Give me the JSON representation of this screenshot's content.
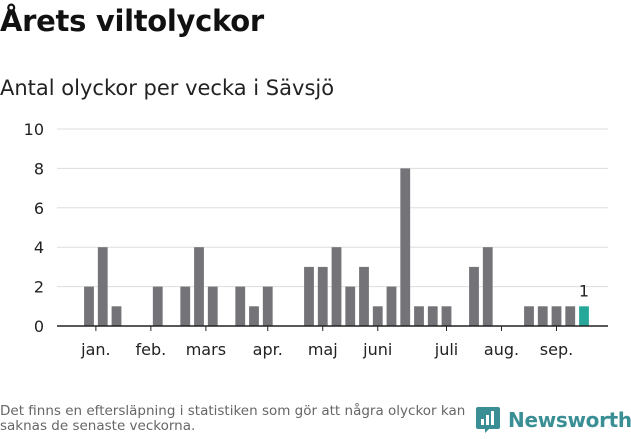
{
  "title": "Årets viltolyckor",
  "subtitle": "Antal olyckor per vecka i Sävsjö",
  "footnote": "Det finns en eftersläpning i statistiken som gör att några olyckor kan saknas de senaste veckorna.",
  "brand": {
    "name": "Newsworthy",
    "icon": "newsworthy-logo-icon"
  },
  "colors": {
    "bar": "#737378",
    "highlight": "#27a79a",
    "grid": "#dddddd",
    "axis": "#222222"
  },
  "chart_data": {
    "type": "bar",
    "title": "Antal olyckor per vecka i Sävsjö",
    "xlabel": "",
    "ylabel": "",
    "ylim": [
      0,
      10
    ],
    "yticks": [
      0,
      2,
      4,
      6,
      8,
      10
    ],
    "grid": true,
    "x": [
      1,
      2,
      3,
      4,
      5,
      6,
      7,
      8,
      9,
      10,
      11,
      12,
      13,
      14,
      15,
      16,
      17,
      18,
      19,
      20,
      21,
      22,
      23,
      24,
      25,
      26,
      27,
      28,
      29,
      30,
      31,
      32,
      33,
      34,
      35,
      36,
      37,
      38
    ],
    "values": [
      2,
      4,
      1,
      0,
      0,
      2,
      0,
      2,
      4,
      2,
      0,
      2,
      1,
      2,
      0,
      0,
      3,
      3,
      4,
      2,
      3,
      1,
      2,
      8,
      1,
      1,
      1,
      0,
      3,
      4,
      0,
      0,
      1,
      1,
      1,
      1,
      1,
      0
    ],
    "highlight_index": 36,
    "highlight_label": "1",
    "month_labels": [
      {
        "label": "jan.",
        "week": 1.5
      },
      {
        "label": "feb.",
        "week": 5.5
      },
      {
        "label": "mars",
        "week": 9.5
      },
      {
        "label": "apr.",
        "week": 14
      },
      {
        "label": "maj",
        "week": 18
      },
      {
        "label": "juni",
        "week": 22
      },
      {
        "label": "juli",
        "week": 27
      },
      {
        "label": "aug.",
        "week": 31
      },
      {
        "label": "sep.",
        "week": 35
      }
    ]
  }
}
